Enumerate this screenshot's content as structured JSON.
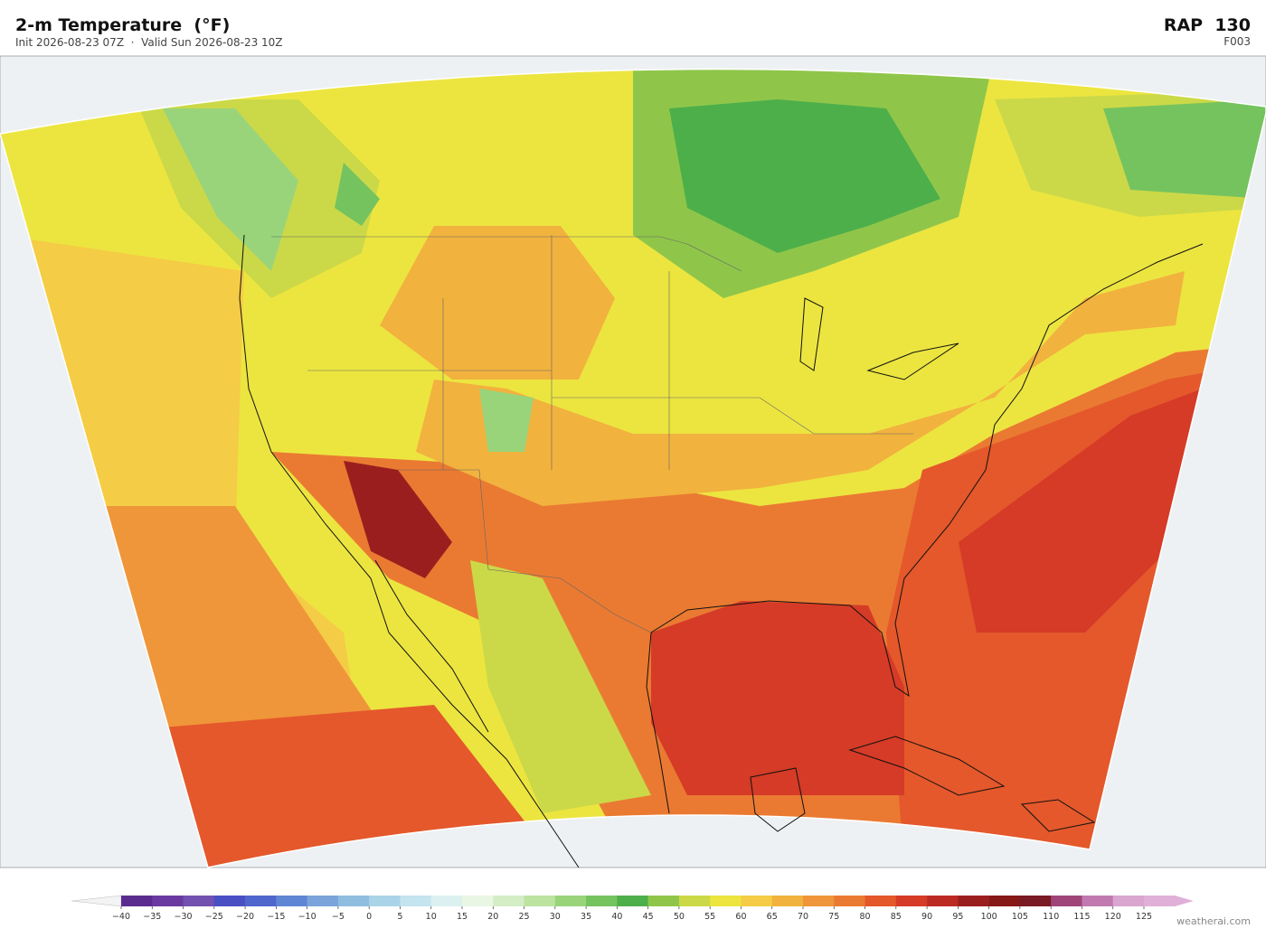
{
  "header": {
    "title": "2-m Temperature  (°F)",
    "subtitle": "Init 2026-08-23 07Z  ·  Valid Sun 2026-08-23 10Z",
    "model": "RAP  130",
    "forecast_hour": "F003"
  },
  "colorbar": {
    "ticks": [
      {
        "value": -40,
        "label": "−40"
      },
      {
        "value": -35,
        "label": "−35"
      },
      {
        "value": -30,
        "label": "−30"
      },
      {
        "value": -25,
        "label": "−25"
      },
      {
        "value": -20,
        "label": "−20"
      },
      {
        "value": -15,
        "label": "−15"
      },
      {
        "value": -10,
        "label": "−10"
      },
      {
        "value": -5,
        "label": "−5"
      },
      0,
      5,
      10,
      15,
      20,
      25,
      30,
      35,
      40,
      45,
      50,
      55,
      60,
      65,
      70,
      75,
      80,
      85,
      90,
      95,
      100,
      105,
      110,
      115,
      120,
      125
    ],
    "colors": [
      "#5b2c8f",
      "#6a3aa0",
      "#7251b0",
      "#4a4fc4",
      "#4f67cc",
      "#5f86d4",
      "#7aa4da",
      "#8fbde0",
      "#abd3e8",
      "#c4e4f0",
      "#dcf0f0",
      "#e9f6e4",
      "#d5edc5",
      "#bde3a0",
      "#99d47b",
      "#75c35e",
      "#4daf4a",
      "#8fc64a",
      "#cbd948",
      "#ece540",
      "#f5cc45",
      "#f2b23e",
      "#ef963a",
      "#ea7a32",
      "#e4582b",
      "#d53b26",
      "#bb2a23",
      "#9b1e1e",
      "#871818",
      "#7a1a24",
      "#a0457a",
      "#c07ab0",
      "#d9a6cf"
    ],
    "under_color": "#f3f3f3",
    "over_color": "#e0b0d8"
  },
  "watermark": "weatherai.com"
}
